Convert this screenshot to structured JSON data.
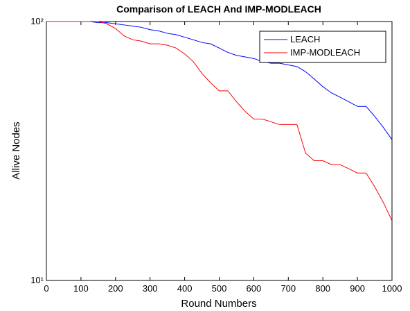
{
  "chart_data": {
    "type": "line",
    "title": "Comparison of LEACH And IMP-MODLEACH",
    "x_label": "Round Numbers",
    "y_label": "Allive Nodes",
    "x": [
      0,
      25,
      50,
      75,
      100,
      125,
      150,
      175,
      200,
      225,
      250,
      275,
      300,
      325,
      350,
      375,
      400,
      425,
      450,
      475,
      500,
      525,
      550,
      575,
      600,
      625,
      650,
      675,
      700,
      725,
      750,
      775,
      800,
      825,
      850,
      875,
      900,
      925,
      950,
      975,
      1000
    ],
    "series": [
      {
        "name": "LEACH",
        "color": "#0000ff",
        "values": [
          100,
          100,
          100,
          100,
          100,
          100,
          99,
          99,
          98,
          97,
          96,
          95,
          93,
          92,
          90,
          89,
          87,
          85,
          83,
          82,
          79,
          76,
          74,
          73,
          72,
          70,
          69,
          69,
          68,
          67,
          64,
          60,
          56,
          53,
          51,
          49,
          47,
          47,
          43,
          39,
          35
        ]
      },
      {
        "name": "IMP-MODLEACH",
        "color": "#ff0000",
        "values": [
          100,
          100,
          100,
          100,
          100,
          100,
          100,
          98,
          94,
          88,
          85,
          84,
          82,
          82,
          81,
          79,
          75,
          70,
          63,
          58,
          54,
          54,
          49,
          45,
          42,
          42,
          41,
          40,
          40,
          40,
          31,
          29,
          29,
          28,
          28,
          27,
          26,
          26,
          23,
          20,
          17
        ]
      }
    ],
    "xlim": [
      0,
      1000
    ],
    "xticks": [
      0,
      100,
      200,
      300,
      400,
      500,
      600,
      700,
      800,
      900,
      1000
    ],
    "ylim": [
      10,
      100
    ],
    "yticks": [
      {
        "value": 10,
        "label": "10¹"
      },
      {
        "value": 100,
        "label": "10²"
      }
    ],
    "log_y": true,
    "legend": "top-right"
  }
}
